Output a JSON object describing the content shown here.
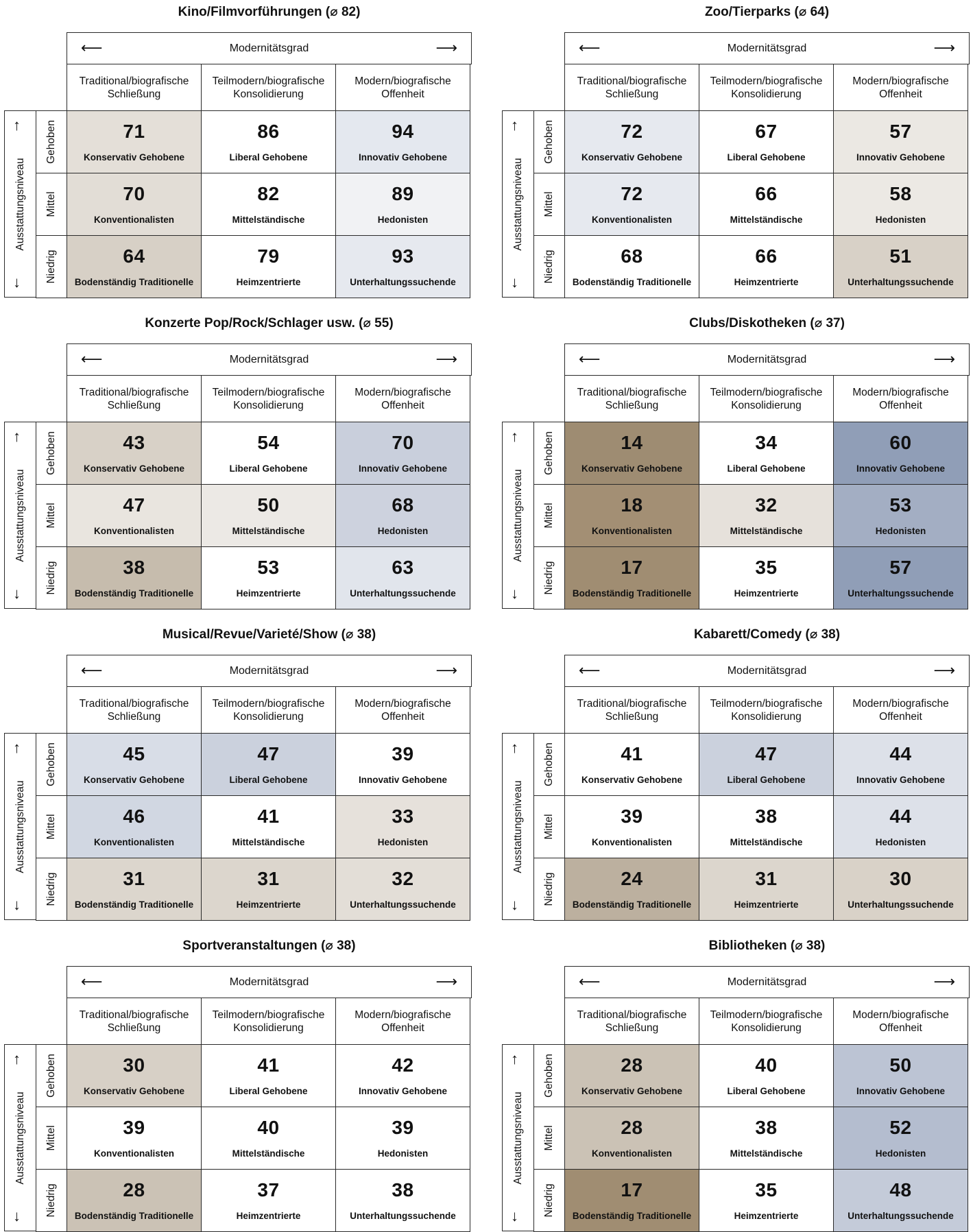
{
  "axis": {
    "columns_label": "Modernitätsgrad",
    "rows_label": "Ausstattungsniveau",
    "columns": [
      "Traditional/biografische\nSchließung",
      "Teilmodern/biografische\nKonsolidierung",
      "Modern/biografische\nOffenheit"
    ],
    "rows": [
      "Gehoben",
      "Mittel",
      "Niedrig"
    ],
    "arrow_left": "⟵",
    "arrow_right": "⟶",
    "arrow_up": "↑",
    "arrow_down": "↓"
  },
  "chart_data": [
    {
      "type": "heatmap",
      "title": "Kino/Filmvorführungen (⌀ 82)",
      "cells": [
        [
          {
            "value": 71,
            "name": "Konservativ Gehobene",
            "color": "#e4dfd8"
          },
          {
            "value": 86,
            "name": "Liberal Gehobene",
            "color": "#ffffff"
          },
          {
            "value": 94,
            "name": "Innovativ Gehobene",
            "color": "#e4e8ef"
          }
        ],
        [
          {
            "value": 70,
            "name": "Konventionalisten",
            "color": "#e2ddd6"
          },
          {
            "value": 82,
            "name": "Mittelständische",
            "color": "#ffffff"
          },
          {
            "value": 89,
            "name": "Hedonisten",
            "color": "#f1f2f4"
          }
        ],
        [
          {
            "value": 64,
            "name": "Bodenständig Traditionelle",
            "color": "#d7d0c6"
          },
          {
            "value": 79,
            "name": "Heimzentrierte",
            "color": "#ffffff"
          },
          {
            "value": 93,
            "name": "Unterhaltungssuchende",
            "color": "#e6e9ef"
          }
        ]
      ]
    },
    {
      "type": "heatmap",
      "title": "Zoo/Tierparks (⌀ 64)",
      "cells": [
        [
          {
            "value": 72,
            "name": "Konservativ Gehobene",
            "color": "#e6e9ef"
          },
          {
            "value": 67,
            "name": "Liberal Gehobene",
            "color": "#ffffff"
          },
          {
            "value": 57,
            "name": "Innovativ Gehobene",
            "color": "#ebe8e3"
          }
        ],
        [
          {
            "value": 72,
            "name": "Konventionalisten",
            "color": "#e6e9ef"
          },
          {
            "value": 66,
            "name": "Mittelständische",
            "color": "#ffffff"
          },
          {
            "value": 58,
            "name": "Hedonisten",
            "color": "#ece9e4"
          }
        ],
        [
          {
            "value": 68,
            "name": "Bodenständig Traditionelle",
            "color": "#ffffff"
          },
          {
            "value": 66,
            "name": "Heimzentrierte",
            "color": "#ffffff"
          },
          {
            "value": 51,
            "name": "Unterhaltungssuchende",
            "color": "#d8d1c7"
          }
        ]
      ]
    },
    {
      "type": "heatmap",
      "title": "Konzerte Pop/Rock/Schlager usw. (⌀ 55)",
      "cells": [
        [
          {
            "value": 43,
            "name": "Konservativ Gehobene",
            "color": "#d8d1c7"
          },
          {
            "value": 54,
            "name": "Liberal Gehobene",
            "color": "#ffffff"
          },
          {
            "value": 70,
            "name": "Innovativ Gehobene",
            "color": "#c9cfdc"
          }
        ],
        [
          {
            "value": 47,
            "name": "Konventionalisten",
            "color": "#e9e5df"
          },
          {
            "value": 50,
            "name": "Mittelständische",
            "color": "#ece9e5"
          },
          {
            "value": 68,
            "name": "Hedonisten",
            "color": "#cdd2de"
          }
        ],
        [
          {
            "value": 38,
            "name": "Bodenständig Traditionelle",
            "color": "#c6bcad"
          },
          {
            "value": 53,
            "name": "Heimzentrierte",
            "color": "#ffffff"
          },
          {
            "value": 63,
            "name": "Unterhaltungssuchende",
            "color": "#e1e5ec"
          }
        ]
      ]
    },
    {
      "type": "heatmap",
      "title": "Clubs/Diskotheken (⌀ 37)",
      "cells": [
        [
          {
            "value": 14,
            "name": "Konservativ Gehobene",
            "color": "#9e8c72"
          },
          {
            "value": 34,
            "name": "Liberal Gehobene",
            "color": "#ffffff"
          },
          {
            "value": 60,
            "name": "Innovativ Gehobene",
            "color": "#909eb7"
          }
        ],
        [
          {
            "value": 18,
            "name": "Konventionalisten",
            "color": "#a38f74"
          },
          {
            "value": 32,
            "name": "Mittelständische",
            "color": "#e6e1db"
          },
          {
            "value": 53,
            "name": "Hedonisten",
            "color": "#a3aec3"
          }
        ],
        [
          {
            "value": 17,
            "name": "Bodenständig Traditionelle",
            "color": "#a08d72"
          },
          {
            "value": 35,
            "name": "Heimzentrierte",
            "color": "#ffffff"
          },
          {
            "value": 57,
            "name": "Unterhaltungssuchende",
            "color": "#909eb7"
          }
        ]
      ]
    },
    {
      "type": "heatmap",
      "title": "Musical/Revue/Varieté/Show (⌀ 38)",
      "cells": [
        [
          {
            "value": 45,
            "name": "Konservativ Gehobene",
            "color": "#d8dde7"
          },
          {
            "value": 47,
            "name": "Liberal Gehobene",
            "color": "#cbd1dd"
          },
          {
            "value": 39,
            "name": "Innovativ Gehobene",
            "color": "#ffffff"
          }
        ],
        [
          {
            "value": 46,
            "name": "Konventionalisten",
            "color": "#d1d7e2"
          },
          {
            "value": 41,
            "name": "Mittelständische",
            "color": "#ffffff"
          },
          {
            "value": 33,
            "name": "Hedonisten",
            "color": "#e6e1db"
          }
        ],
        [
          {
            "value": 31,
            "name": "Bodenständig Traditionelle",
            "color": "#dcd6cd"
          },
          {
            "value": 31,
            "name": "Heimzentrierte",
            "color": "#dcd6cd"
          },
          {
            "value": 32,
            "name": "Unterhaltungssuchende",
            "color": "#e3ded7"
          }
        ]
      ]
    },
    {
      "type": "heatmap",
      "title": "Kabarett/Comedy (⌀ 38)",
      "cells": [
        [
          {
            "value": 41,
            "name": "Konservativ Gehobene",
            "color": "#ffffff"
          },
          {
            "value": 47,
            "name": "Liberal Gehobene",
            "color": "#cbd1dd"
          },
          {
            "value": 44,
            "name": "Innovativ Gehobene",
            "color": "#dde1e9"
          }
        ],
        [
          {
            "value": 39,
            "name": "Konventionalisten",
            "color": "#ffffff"
          },
          {
            "value": 38,
            "name": "Mittelständische",
            "color": "#ffffff"
          },
          {
            "value": 44,
            "name": "Hedonisten",
            "color": "#dde1e9"
          }
        ],
        [
          {
            "value": 24,
            "name": "Bodenständig Traditionelle",
            "color": "#bcb09f"
          },
          {
            "value": 31,
            "name": "Heimzentrierte",
            "color": "#dcd6cd"
          },
          {
            "value": 30,
            "name": "Unterhaltungssuchende",
            "color": "#d9d2c8"
          }
        ]
      ]
    },
    {
      "type": "heatmap",
      "title": "Sportveranstaltungen (⌀ 38)",
      "cells": [
        [
          {
            "value": 30,
            "name": "Konservativ Gehobene",
            "color": "#d7d0c6"
          },
          {
            "value": 41,
            "name": "Liberal Gehobene",
            "color": "#ffffff"
          },
          {
            "value": 42,
            "name": "Innovativ Gehobene",
            "color": "#ffffff"
          }
        ],
        [
          {
            "value": 39,
            "name": "Konventionalisten",
            "color": "#ffffff"
          },
          {
            "value": 40,
            "name": "Mittelständische",
            "color": "#ffffff"
          },
          {
            "value": 39,
            "name": "Hedonisten",
            "color": "#ffffff"
          }
        ],
        [
          {
            "value": 28,
            "name": "Bodenständig Traditionelle",
            "color": "#cbc2b5"
          },
          {
            "value": 37,
            "name": "Heimzentrierte",
            "color": "#ffffff"
          },
          {
            "value": 38,
            "name": "Unterhaltungssuchende",
            "color": "#ffffff"
          }
        ]
      ]
    },
    {
      "type": "heatmap",
      "title": "Bibliotheken (⌀ 38)",
      "cells": [
        [
          {
            "value": 28,
            "name": "Konservativ Gehobene",
            "color": "#cbc2b5"
          },
          {
            "value": 40,
            "name": "Liberal Gehobene",
            "color": "#ffffff"
          },
          {
            "value": 50,
            "name": "Innovativ Gehobene",
            "color": "#bcc4d4"
          }
        ],
        [
          {
            "value": 28,
            "name": "Konventionalisten",
            "color": "#cbc2b5"
          },
          {
            "value": 38,
            "name": "Mittelständische",
            "color": "#ffffff"
          },
          {
            "value": 52,
            "name": "Hedonisten",
            "color": "#b4bdcf"
          }
        ],
        [
          {
            "value": 17,
            "name": "Bodenständig Traditionelle",
            "color": "#a08d72"
          },
          {
            "value": 35,
            "name": "Heimzentrierte",
            "color": "#ffffff"
          },
          {
            "value": 48,
            "name": "Unterhaltungssuchende",
            "color": "#c4cbd9"
          }
        ]
      ]
    }
  ]
}
